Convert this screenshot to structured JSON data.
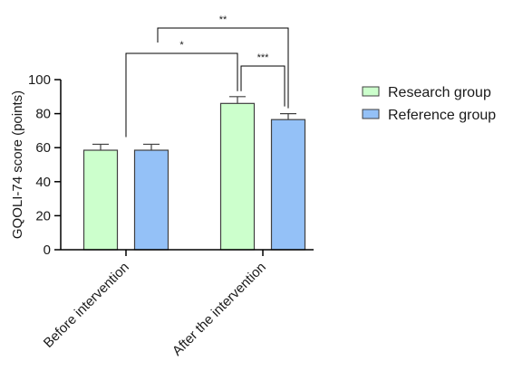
{
  "chart_data": {
    "type": "bar",
    "ylabel": "GQOLI-74 score (points)",
    "ylim": [
      0,
      100
    ],
    "yticks": [
      0,
      20,
      40,
      60,
      80,
      100
    ],
    "categories": [
      "Before intervention",
      "After the intervention"
    ],
    "series": [
      {
        "name": "Research group",
        "values": [
          58.5,
          86
        ],
        "errors": [
          3.5,
          4
        ],
        "color": "#ccffcc"
      },
      {
        "name": "Reference group",
        "values": [
          58.5,
          76.5
        ],
        "errors": [
          3.5,
          3.5
        ],
        "color": "#94c1f7"
      }
    ],
    "significance": [
      {
        "label": "*",
        "from": "Before intervention",
        "to": "After the intervention / Research group"
      },
      {
        "label": "**",
        "from": "Before intervention",
        "to": "After the intervention / Reference group"
      },
      {
        "label": "***",
        "from": "After the intervention / Research group",
        "to": "After the intervention / Reference group"
      }
    ],
    "legend_position": "right"
  }
}
